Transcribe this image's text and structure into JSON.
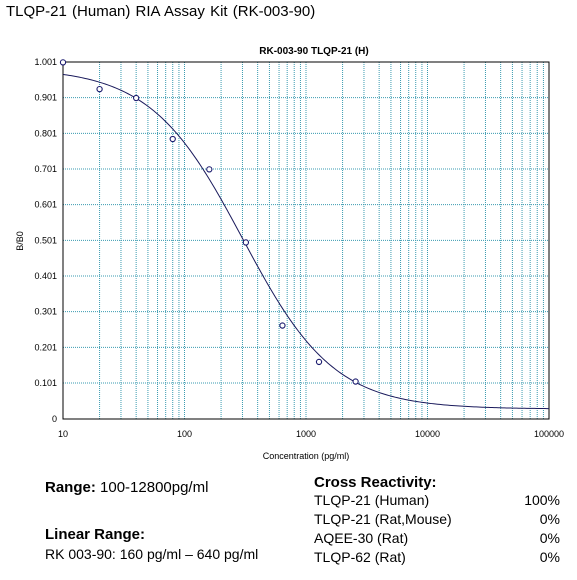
{
  "header": {
    "title": "TLQP-21 (Human)  RIA Assay Kit     (RK-003-90)"
  },
  "chart_data": {
    "type": "scatter",
    "title": "RK-003-90  TLQP-21 (H)",
    "xlabel": "Concentration (pg/ml)",
    "ylabel": "B/B0",
    "x_scale": "log",
    "xlim": [
      10,
      100000
    ],
    "ylim": [
      0,
      1.001
    ],
    "grid": true,
    "x_ticks": [
      {
        "value": 10,
        "label": "10"
      },
      {
        "value": 100,
        "label": "100"
      },
      {
        "value": 1000,
        "label": "1000"
      },
      {
        "value": 10000,
        "label": "10000"
      },
      {
        "value": 100000,
        "label": "100000"
      }
    ],
    "y_ticks": [
      {
        "value": 0,
        "label": "0"
      },
      {
        "value": 0.101,
        "label": "0.101"
      },
      {
        "value": 0.201,
        "label": "0.201"
      },
      {
        "value": 0.301,
        "label": "0.301"
      },
      {
        "value": 0.401,
        "label": "0.401"
      },
      {
        "value": 0.501,
        "label": "0.501"
      },
      {
        "value": 0.601,
        "label": "0.601"
      },
      {
        "value": 0.701,
        "label": "0.701"
      },
      {
        "value": 0.801,
        "label": "0.801"
      },
      {
        "value": 0.901,
        "label": "0.901"
      },
      {
        "value": 1.001,
        "label": "1.001"
      }
    ],
    "series": [
      {
        "type": "scatter",
        "x": [
          10,
          20,
          40,
          80,
          160,
          320,
          640,
          1280,
          2560
        ],
        "y": [
          1.0,
          0.925,
          0.9,
          0.785,
          0.7,
          0.495,
          0.262,
          0.16,
          0.105
        ]
      },
      {
        "type": "line",
        "fit": "4PL",
        "params": {
          "top": 0.985,
          "bottom": 0.028,
          "ec50": 300,
          "hill": 1.15
        }
      }
    ],
    "colors": {
      "grid": "#3a9bb0",
      "curve": "#1a1a5c",
      "points": "#1a1a6e",
      "frame": "#000000"
    }
  },
  "info": {
    "range_label": "Range:",
    "range_value": "100-12800pg/ml",
    "linear_title": "Linear Range:",
    "linear_value": "RK 003-90:   160 pg/ml  –  640 pg/ml"
  },
  "cross_reactivity": {
    "title": "Cross Reactivity:",
    "rows": [
      {
        "name": "TLQP-21 (Human)",
        "value": "100%"
      },
      {
        "name": "TLQP-21 (Rat,Mouse)",
        "value": "0%"
      },
      {
        "name": "AQEE-30 (Rat)",
        "value": "0%"
      },
      {
        "name": "TLQP-62 (Rat)",
        "value": "0%"
      }
    ]
  }
}
